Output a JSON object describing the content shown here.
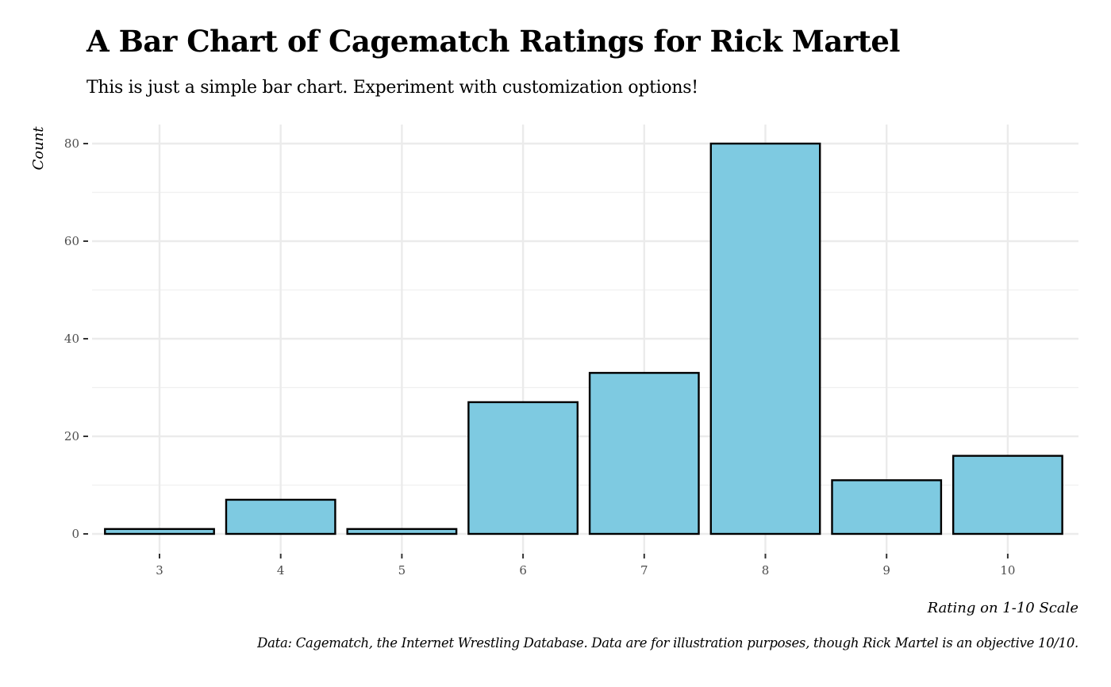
{
  "chart_data": {
    "type": "bar",
    "title": "A Bar Chart of Cagematch Ratings for Rick Martel",
    "subtitle": "This is just a simple bar chart. Experiment with customization options!",
    "xlabel": "Rating on 1-10 Scale",
    "ylabel": "Count",
    "caption": "Data: Cagematch, the Internet Wrestling Database. Data are for illustration purposes, though Rick Martel is an objective 10/10.",
    "categories": [
      "3",
      "4",
      "5",
      "6",
      "7",
      "8",
      "9",
      "10"
    ],
    "values": [
      1,
      7,
      1,
      27,
      33,
      80,
      11,
      16
    ],
    "ylim": [
      0,
      84
    ],
    "yticks": [
      0,
      20,
      40,
      60,
      80
    ],
    "grid": true,
    "legend": "none",
    "bar_fill": "#7ecae1",
    "bar_stroke": "#000000"
  }
}
